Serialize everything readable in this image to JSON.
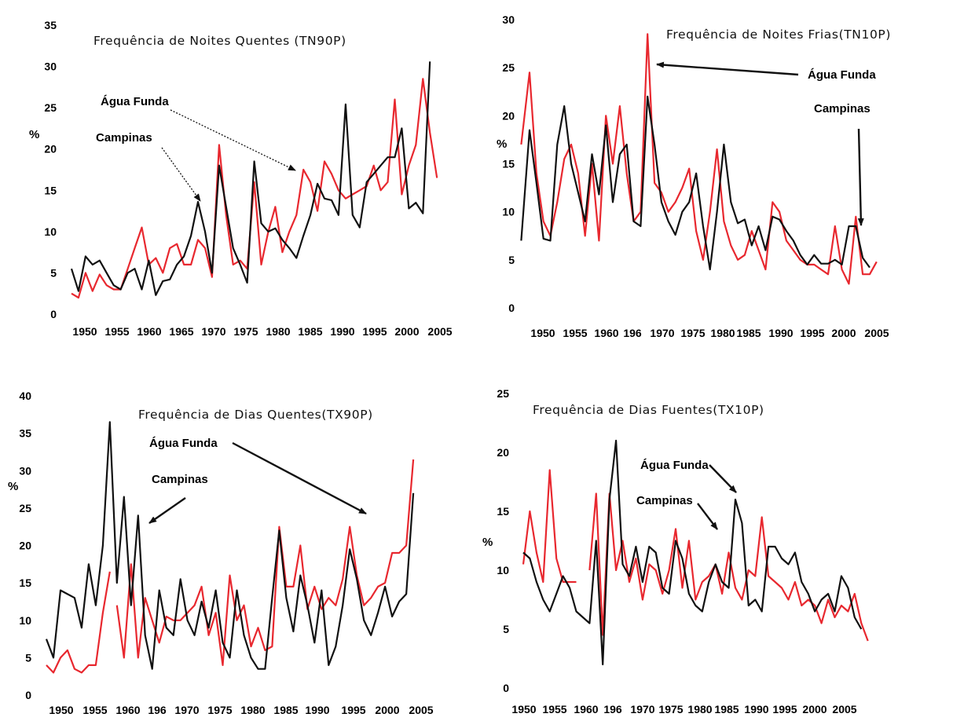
{
  "colors": {
    "agua_funda": "#e8282f",
    "campinas": "#111111"
  },
  "chart_data": [
    {
      "type": "line",
      "title": "Frequência de Noites Quentes (TN90P)",
      "ylabel": "%",
      "ylim": [
        0,
        35
      ],
      "yticks": [
        "0",
        "5",
        "10",
        "15",
        "20",
        "25",
        "30",
        "35"
      ],
      "xticks": [
        "1950",
        "1955",
        "1960",
        "1965",
        "1970",
        "1975",
        "1980",
        "1985",
        "1990",
        "1995",
        "2000",
        "2005"
      ],
      "annotations": [
        "Água Funda",
        "Campinas"
      ],
      "series": [
        {
          "name": "Campinas",
          "x": [
            1950,
            1951,
            1952,
            1953,
            1954,
            1955,
            1956,
            1957,
            1958,
            1959,
            1960,
            1961,
            1962,
            1963,
            1964,
            1965,
            1966,
            1967,
            1968,
            1969,
            1970,
            1971,
            1972,
            1973,
            1974,
            1975,
            1976,
            1977,
            1978,
            1979,
            1980,
            1981,
            1982,
            1983,
            1984,
            1985,
            1986,
            1987,
            1988,
            1989,
            1990,
            1991,
            1992,
            1993,
            1994,
            1995,
            1996,
            1997,
            1998,
            1999,
            2000,
            2001
          ],
          "y": [
            5.5,
            2.8,
            7,
            6,
            6.5,
            5,
            3.5,
            3,
            5,
            5.5,
            3,
            6.5,
            2.3,
            4,
            4.2,
            6,
            7,
            9.5,
            13.6,
            10,
            5,
            18,
            13,
            8,
            6,
            3.8,
            18.5,
            11,
            10,
            10.4,
            9,
            8,
            6.8,
            9.5,
            12,
            15.8,
            14,
            13.8,
            12,
            25.4,
            12,
            10.5,
            16,
            17,
            18,
            19,
            19,
            22.5,
            12.8,
            13.5,
            12.2,
            30.6
          ]
        },
        {
          "name": "Água Funda",
          "x": [
            1950,
            1951,
            1952,
            1953,
            1954,
            1955,
            1956,
            1957,
            1958,
            1959,
            1960,
            1961,
            1962,
            1963,
            1964,
            1965,
            1966,
            1967,
            1968,
            1969,
            1970,
            1971,
            1972,
            1973,
            1974,
            1975,
            1976,
            1977,
            1978,
            1979,
            1980,
            1981,
            1982,
            1983,
            1984,
            1985,
            1986,
            1987,
            1988,
            1989,
            1990,
            1991,
            1992,
            1993,
            1994,
            1995,
            1996,
            1997,
            1998,
            1999,
            2000,
            2001,
            2002
          ],
          "y": [
            2.5,
            2,
            5,
            2.8,
            4.8,
            3.5,
            3,
            3,
            5.5,
            8,
            10.5,
            6,
            6.8,
            5,
            8,
            8.5,
            6,
            6,
            9,
            8,
            4.5,
            20.5,
            12,
            6,
            6.5,
            5.5,
            16,
            6,
            10,
            13,
            7.5,
            10,
            12,
            17.5,
            16,
            12.5,
            18.5,
            17,
            15,
            14,
            14.5,
            15,
            15.5,
            18,
            15,
            16,
            26,
            14.5,
            18,
            20.5,
            28.5,
            22,
            16.5
          ]
        }
      ]
    },
    {
      "type": "line",
      "title": "Frequência de Noites Frias(TN10P)",
      "ylabel": "%",
      "ylim": [
        0,
        30
      ],
      "yticks": [
        "0",
        "5",
        "10",
        "15",
        "20",
        "25",
        "30"
      ],
      "xticks": [
        "1950",
        "1955",
        "1960",
        "196",
        "1970",
        "1975",
        "1980",
        "1985",
        "1990",
        "1995",
        "2000",
        "2005"
      ],
      "annotations": [
        "Água Funda",
        "Campinas"
      ],
      "series": [
        {
          "name": "Campinas",
          "x": [
            1948.8,
            1950,
            1951,
            1952,
            1953,
            1954,
            1955,
            1956,
            1957,
            1958,
            1959,
            1960,
            1961,
            1962,
            1963,
            1964,
            1965,
            1966,
            1967,
            1968,
            1969,
            1970,
            1971,
            1972,
            1973,
            1974,
            1975,
            1976,
            1977,
            1978,
            1979,
            1980,
            1981,
            1982,
            1983,
            1984,
            1985,
            1986,
            1987,
            1988,
            1989,
            1990,
            1991,
            1992,
            1993,
            1994,
            1995,
            1996,
            1997,
            1998,
            1999
          ],
          "y": [
            7,
            18.5,
            13,
            7.2,
            7,
            17,
            21,
            15,
            12,
            9,
            16,
            11.8,
            19,
            11,
            16,
            17,
            9,
            8.5,
            22,
            17,
            11,
            9,
            7.6,
            10,
            11,
            14,
            8.5,
            4,
            10,
            17,
            11,
            8.8,
            9.2,
            6.5,
            8.5,
            6,
            9.5,
            9.2,
            8,
            7,
            5.5,
            4.5,
            5.5,
            4.6,
            4.6,
            5,
            4.5,
            8.5,
            8.5,
            5.2,
            4.2
          ]
        },
        {
          "name": "Água Funda",
          "x": [
            1948.8,
            1950,
            1951,
            1952,
            1953,
            1954,
            1955,
            1956,
            1957,
            1958,
            1959,
            1960,
            1961,
            1962,
            1963,
            1964,
            1965,
            1966,
            1967,
            1968,
            1969,
            1970,
            1971,
            1972,
            1973,
            1974,
            1975,
            1976,
            1977,
            1978,
            1979,
            1980,
            1981,
            1982,
            1983,
            1984,
            1985,
            1986,
            1987,
            1988,
            1989,
            1990,
            1991,
            1992,
            1993,
            1994,
            1995,
            1996,
            1997,
            1998,
            1999,
            2000
          ],
          "y": [
            17,
            24.5,
            14,
            9,
            7.5,
            11,
            15.5,
            17,
            14,
            7.5,
            15,
            7,
            20,
            15,
            21,
            14,
            9,
            10,
            28.5,
            13,
            12,
            10,
            11,
            12.5,
            14.5,
            8,
            5,
            10,
            16.5,
            9,
            6.5,
            5,
            5.5,
            8,
            6,
            4,
            11,
            10,
            7,
            6,
            5,
            4.5,
            4.5,
            4,
            3.5,
            8.5,
            4,
            2.5,
            9.5,
            3.5,
            3.5,
            4.8
          ]
        }
      ]
    },
    {
      "type": "line",
      "title": "Frequência de Dias Quentes(TX90P)",
      "ylabel": "%",
      "ylim": [
        0,
        40
      ],
      "yticks": [
        "0",
        "5",
        "10",
        "15",
        "20",
        "25",
        "30",
        "35",
        "40"
      ],
      "xticks": [
        "1950",
        "1955",
        "1960",
        "196",
        "1970",
        "1975",
        "1980",
        "1985",
        "1990",
        "1995",
        "2000",
        "2005"
      ],
      "annotations": [
        "Água Funda",
        "Campinas"
      ],
      "series": [
        {
          "name": "Campinas",
          "x": [
            1950,
            1951,
            1952,
            1953,
            1954,
            1955,
            1956,
            1957,
            1958,
            1959,
            1960,
            1961,
            1962,
            1963,
            1964,
            1965,
            1966,
            1967,
            1968,
            1969,
            1970,
            1971,
            1972,
            1973,
            1974,
            1975,
            1976,
            1977,
            1978,
            1979,
            1980,
            1981,
            1982,
            1983,
            1984,
            1985,
            1986,
            1987,
            1988,
            1989,
            1990,
            1991,
            1992,
            1993,
            1994,
            1995,
            1996,
            1997,
            1998,
            1999,
            2000,
            2001,
            2002
          ],
          "y": [
            7.5,
            5,
            14,
            13.5,
            13,
            9,
            17.5,
            12,
            20,
            36.5,
            15,
            26.5,
            12,
            24,
            8,
            3.5,
            14,
            9,
            8,
            15.5,
            10,
            8,
            12.5,
            9,
            14,
            7,
            5,
            14,
            8,
            5,
            3.5,
            3.5,
            13,
            22,
            13,
            8.5,
            16,
            12,
            7,
            14,
            4,
            6.5,
            12,
            19.5,
            15.5,
            10,
            8,
            11,
            14.5,
            10.5,
            12.5,
            13.5,
            27
          ]
        },
        {
          "name": "Água Funda",
          "x": [
            1950,
            1951,
            1952,
            1953,
            1954,
            1955,
            1956,
            1957,
            1958,
            1959,
            null,
            1960,
            1961,
            1962,
            1963,
            1964,
            1965,
            1966,
            1967,
            1968,
            1969,
            1970,
            1971,
            1972,
            1973,
            1974,
            1975,
            1976,
            1977,
            1978,
            1979,
            1980,
            1981,
            1982,
            1983,
            1984,
            1985,
            1986,
            1987,
            1988,
            1989,
            1990,
            1991,
            1992,
            1993,
            1994,
            1995,
            1996,
            1997,
            1998,
            1999,
            2000,
            2001,
            2002
          ],
          "y": [
            4,
            3,
            5,
            6,
            3.5,
            3,
            4,
            4,
            11,
            16.5,
            null,
            12,
            5,
            17.5,
            5,
            13,
            10,
            7,
            10.5,
            10,
            10,
            11,
            12,
            14.5,
            8,
            11,
            4,
            16,
            10,
            12,
            6.5,
            9,
            6,
            6.5,
            22.5,
            14.5,
            14.5,
            20,
            11.5,
            14.5,
            11.5,
            13,
            12,
            15.5,
            22.5,
            16,
            12,
            13,
            14.5,
            15,
            19,
            19,
            20,
            31.5
          ]
        }
      ]
    },
    {
      "type": "line",
      "title": "Frequência de Dias Fuentes(TX10P)",
      "ylabel": "%",
      "ylim": [
        0,
        25
      ],
      "yticks": [
        "0",
        "5",
        "10",
        "15",
        "20",
        "25"
      ],
      "xticks": [
        "1950",
        "1955",
        "1960",
        "196",
        "1970",
        "1975",
        "1980",
        "1985",
        "1990",
        "1995",
        "2000",
        "2005"
      ],
      "annotations": [
        "Água Funda",
        "Campinas"
      ],
      "series": [
        {
          "name": "Campinas",
          "x": [
            1950,
            1951,
            1952,
            1953,
            1954,
            1955,
            1956,
            1957,
            1958,
            1959,
            1960,
            1961,
            1962,
            1963,
            1964,
            1965,
            1966,
            1967,
            1968,
            1969,
            1970,
            1971,
            1972,
            1973,
            1974,
            1975,
            1976,
            1977,
            1978,
            1979,
            1980,
            1981,
            1982,
            1983,
            1984,
            1985,
            1986,
            1987,
            1988,
            1989,
            1990,
            1991,
            1992,
            1993,
            1994,
            1995,
            1996,
            1997,
            1998,
            1999,
            2000,
            2001
          ],
          "y": [
            11.5,
            11,
            9,
            7.5,
            6.5,
            8,
            9.5,
            8.5,
            6.5,
            6,
            5.5,
            12.5,
            2,
            16,
            21,
            10.5,
            9.5,
            12,
            9,
            12,
            11.5,
            8.5,
            8,
            12.5,
            11,
            8,
            7,
            6.5,
            9,
            10.5,
            9,
            8.5,
            16,
            14,
            7,
            7.5,
            6.5,
            12,
            12,
            11,
            10.5,
            11.5,
            9,
            8,
            6.5,
            7.5,
            8,
            6.5,
            9.5,
            8.5,
            6,
            5
          ]
        },
        {
          "name": "Água Funda",
          "x": [
            1950,
            1951,
            1952,
            1953,
            1954,
            1955,
            1956,
            1957,
            1958,
            null,
            1960,
            1961,
            1962,
            1963,
            1964,
            1965,
            1966,
            1967,
            1968,
            1969,
            1970,
            1971,
            1972,
            1973,
            1974,
            1975,
            1976,
            1977,
            1978,
            1979,
            1980,
            1981,
            1982,
            1983,
            1984,
            1985,
            1986,
            1987,
            1988,
            1989,
            1990,
            1991,
            1992,
            1993,
            1994,
            1995,
            1996,
            1997,
            1998,
            1999,
            2000,
            2001,
            2002
          ],
          "y": [
            10.5,
            15,
            11.5,
            9,
            18.5,
            11,
            9,
            9,
            9,
            null,
            10,
            16.5,
            4.5,
            16.5,
            10,
            12.5,
            9,
            11,
            7.5,
            10.5,
            10,
            8,
            10,
            13.5,
            8.5,
            12.5,
            7.5,
            9,
            9.5,
            10.5,
            8,
            11.5,
            8.5,
            7.5,
            10,
            9.5,
            14.5,
            9.5,
            9,
            8.5,
            7.5,
            9,
            7,
            7.5,
            7,
            5.5,
            7.5,
            6,
            7,
            6.5,
            8,
            5.5,
            4
          ]
        }
      ]
    }
  ]
}
